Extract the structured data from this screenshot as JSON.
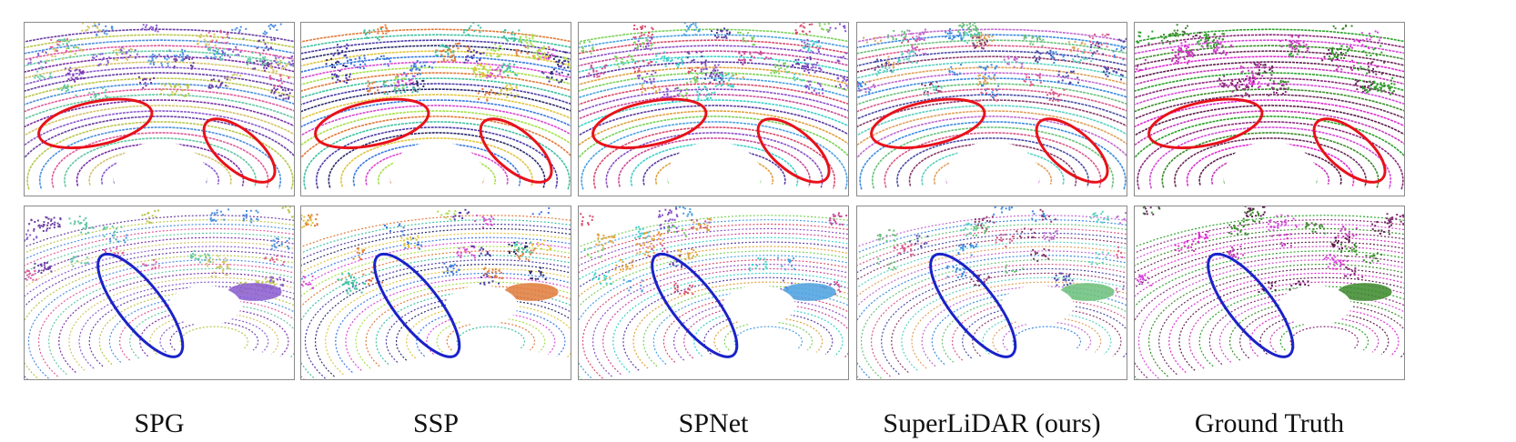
{
  "figure": {
    "columns": [
      {
        "label": "SPG",
        "palette": [
          "#b9c64a",
          "#6a3fa3",
          "#8a5bd0",
          "#d3c36a",
          "#7b2ea5",
          "#63c6a2",
          "#e05a9a",
          "#4b8ee0"
        ]
      },
      {
        "label": "SSP",
        "palette": [
          "#4b3aa6",
          "#3ec0a0",
          "#e07a3a",
          "#a6e04a",
          "#d84ad0",
          "#3a78e0",
          "#e0c43a",
          "#2a2a6a"
        ]
      },
      {
        "label": "SPNet",
        "palette": [
          "#8a4fc8",
          "#d84a6a",
          "#4aa0e0",
          "#7ad05a",
          "#e0a03a",
          "#5a3aa0",
          "#3ad0c8",
          "#c84a9a"
        ]
      },
      {
        "label": "SuperLiDAR (ours)",
        "palette": [
          "#4a4aa6",
          "#d85a8a",
          "#6ac07a",
          "#3a8ae0",
          "#c06ad0",
          "#e0a05a",
          "#5ad0c0",
          "#8a3a6a"
        ]
      },
      {
        "label": "Ground Truth",
        "palette": [
          "#e02ad0",
          "#6a2a5a",
          "#3a8a2a",
          "#d44ad8",
          "#8a2a7a",
          "#2aa02a",
          "#c43ab8",
          "#5a1a4a"
        ]
      }
    ],
    "rows": [
      {
        "ellipse_color": "#e8111a",
        "background_hue": "outdoor-scene-1"
      },
      {
        "ellipse_color": "#1a22c8",
        "background_hue": "outdoor-scene-2"
      }
    ]
  }
}
